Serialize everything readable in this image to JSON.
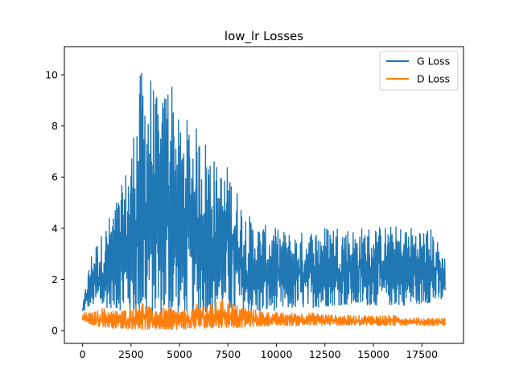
{
  "chart_data": {
    "type": "line",
    "title": "low_lr Losses",
    "xlabel": "",
    "ylabel": "",
    "xlim": [
      -940,
      19650
    ],
    "ylim": [
      -0.5,
      11.1
    ],
    "x_ticks": [
      0,
      2500,
      5000,
      7500,
      10000,
      12500,
      15000,
      17500
    ],
    "x_tick_labels": [
      "0",
      "2500",
      "5000",
      "7500",
      "10000",
      "12500",
      "15000",
      "17500"
    ],
    "y_ticks": [
      0,
      2,
      4,
      6,
      8,
      10
    ],
    "y_tick_labels": [
      "0",
      "2",
      "4",
      "6",
      "8",
      "10"
    ],
    "grid": false,
    "legend_position": "top-right",
    "series": [
      {
        "name": "G Loss",
        "color": "#1f77b4",
        "x": [
          0,
          250,
          500,
          1000,
          1500,
          2000,
          2500,
          3000,
          3500,
          4000,
          4500,
          5000,
          5500,
          6000,
          6500,
          7000,
          7500,
          8000,
          8500,
          9000,
          10000,
          11000,
          12000,
          13000,
          14000,
          15000,
          16000,
          17000,
          18000,
          18700
        ],
        "min": [
          0.7,
          0.9,
          1.0,
          0.9,
          0.9,
          0.8,
          0.7,
          0.6,
          0.6,
          0.6,
          0.6,
          0.6,
          0.7,
          0.7,
          0.7,
          0.8,
          0.8,
          0.7,
          0.7,
          0.7,
          0.8,
          0.9,
          0.9,
          1.0,
          1.0,
          1.0,
          1.0,
          1.0,
          1.1,
          1.2
        ],
        "max": [
          0.9,
          2.2,
          3.2,
          3.8,
          4.7,
          5.6,
          7.2,
          10.2,
          10.2,
          8.6,
          10.6,
          8.0,
          8.4,
          7.8,
          7.5,
          6.3,
          6.5,
          5.5,
          4.6,
          4.2,
          4.0,
          3.8,
          4.0,
          4.2,
          4.0,
          4.1,
          4.1,
          4.1,
          4.0,
          2.9
        ]
      },
      {
        "name": "D Loss",
        "color": "#ff7f0e",
        "x": [
          0,
          250,
          500,
          1000,
          1500,
          2000,
          2500,
          3000,
          3500,
          4000,
          4500,
          5000,
          5500,
          6000,
          6500,
          7000,
          7500,
          8000,
          8500,
          9000,
          10000,
          11000,
          12000,
          13000,
          14000,
          15000,
          16000,
          17000,
          18000,
          18700
        ],
        "min": [
          0.4,
          0.3,
          0.2,
          0.15,
          0.1,
          0.08,
          0.07,
          0.05,
          0.05,
          0.05,
          0.05,
          0.05,
          0.06,
          0.08,
          0.1,
          0.1,
          0.12,
          0.12,
          0.15,
          0.17,
          0.2,
          0.2,
          0.2,
          0.2,
          0.2,
          0.2,
          0.2,
          0.2,
          0.2,
          0.2
        ],
        "max": [
          0.7,
          0.7,
          0.7,
          0.9,
          0.8,
          0.8,
          0.9,
          1.2,
          0.9,
          0.9,
          0.9,
          0.8,
          0.8,
          1.1,
          1.0,
          1.2,
          1.2,
          1.0,
          0.9,
          0.8,
          0.7,
          0.7,
          0.7,
          0.6,
          0.6,
          0.6,
          0.6,
          0.5,
          0.5,
          0.5
        ]
      }
    ]
  }
}
